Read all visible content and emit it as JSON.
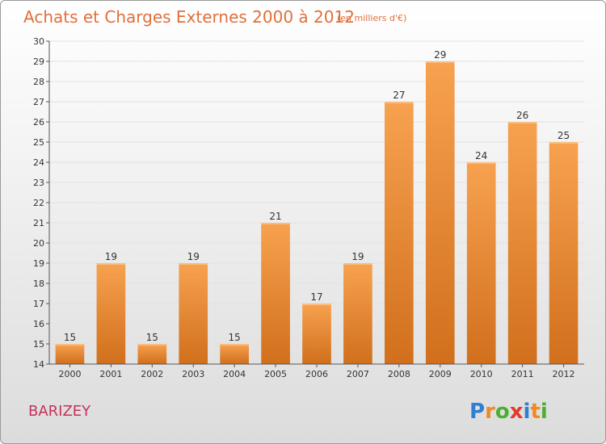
{
  "chart_data": {
    "type": "bar",
    "title": "Achats et Charges Externes 2000 à 2012",
    "subtitle": "(en milliers d'€)",
    "categories": [
      "2000",
      "2001",
      "2002",
      "2003",
      "2004",
      "2005",
      "2006",
      "2007",
      "2008",
      "2009",
      "2010",
      "2011",
      "2012"
    ],
    "values": [
      15,
      19,
      15,
      19,
      15,
      21,
      17,
      19,
      27,
      29,
      24,
      26,
      25
    ],
    "ylim": [
      14,
      30
    ],
    "yticks": [
      14,
      15,
      16,
      17,
      18,
      19,
      20,
      21,
      22,
      23,
      24,
      25,
      26,
      27,
      28,
      29,
      30
    ],
    "xlabel": "",
    "ylabel": "",
    "bar_color_top": "#f7a250",
    "bar_color_bottom": "#d16f1c"
  },
  "commune": "BARIZEY",
  "logo": {
    "letters": [
      "P",
      "r",
      "o",
      "x",
      "i",
      "t",
      "i"
    ],
    "colors": [
      "#2f7fd3",
      "#f08a1f",
      "#4caf2f",
      "#e23a2b",
      "#2f7fd3",
      "#f08a1f",
      "#4caf2f"
    ]
  }
}
